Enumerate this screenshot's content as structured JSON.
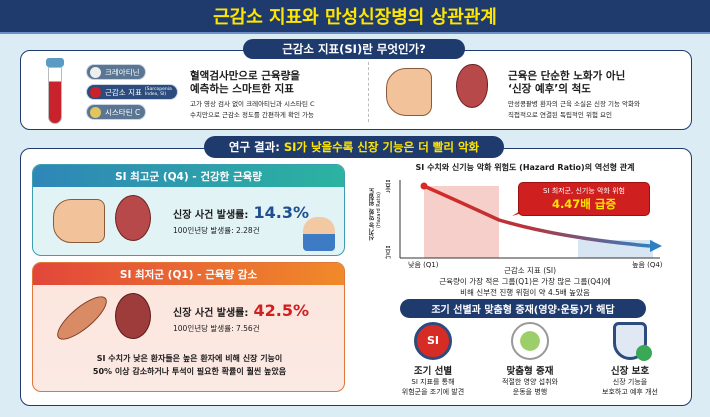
{
  "title": "근감소 지표와 만성신장병의 상관관계",
  "section1": {
    "header": "근감소 지표(SI)란 무엇인가?",
    "tags": [
      {
        "label": "크레아티닌",
        "icon": "flask-icon"
      },
      {
        "label": "근감소 지표",
        "sub": "(Sarcopenia Index, SI)",
        "icon": "blood-drop-icon"
      },
      {
        "label": "시스타틴 C",
        "icon": "molecule-icon"
      }
    ],
    "left_heading": [
      "혈액검사만으로 근육량을",
      "예측하는 스마트한 지표"
    ],
    "left_text": [
      "고가 영상 검사 없이 크레아티닌과 시스타틴 C",
      "수치만으로 근감소 정도를 간편하게 확인 가능"
    ],
    "right_heading": [
      "근육은 단순한 노화가 아닌",
      "‘신장 예후’의 척도"
    ],
    "right_text": [
      "만성콩팥병 환자의 근육 소실은 신장 기능 악화와",
      "직접적으로 연결된 독립적인 위험 요인"
    ]
  },
  "section2": {
    "header_prefix": "연구 결과:",
    "header_highlight": "SI가 낮을수록 신장 기능은 더 빨리 악화",
    "q4": {
      "title": "SI 최고군 (Q4) - 건강한 근육량",
      "label": "신장 사건 발생률:",
      "value": "14.3%",
      "sub": "100인년당 발생률: 2.28건",
      "color": "#1f4f8f"
    },
    "q1": {
      "title": "SI 최저군 (Q1) - 근육량 감소",
      "label": "신장 사건 발생률:",
      "value": "42.5%",
      "sub": "100인년당 발생률: 7.56건",
      "color": "#d01f1f"
    },
    "summary": [
      "SI 수치가 낮은 환자들은 높은 환자에 비해 신장 기능이",
      "50% 이상 감소하거나 투석이 필요한 확률이 훨씬 높았음"
    ],
    "chart": {
      "title": "SI 수치와 신기능 악화 위험도 (Hazard Ratio)의 역선형 관계",
      "ylabel": "신기능 악화 위험도",
      "ylabel_sub": "(Hazard Ratio)",
      "y_high": "높음",
      "y_low": "낮음",
      "x_low": "낮음 (Q1)",
      "x_high": "높음 (Q4)",
      "xlabel": "근감소 지표 (SI)",
      "callout_line1": "SI 최저군, 신기능 악화 위험",
      "callout_line2": "4.47배 급증",
      "caption": [
        "근육량이 가장 적은 그룹(Q1)은 가장 많은 그룹(Q4)에",
        "비해 신부전 진행 위험이 약 4.5배 높았음"
      ]
    },
    "solution_header": "조기 선별과 맞춤형 중재(영양·운동)가 해답",
    "solutions": [
      {
        "title": "조기 선별",
        "lines": [
          "SI 지표를 통해",
          "위험군을 조기에 발견"
        ],
        "icon": "magnifier-icon",
        "icon_text": "SI"
      },
      {
        "title": "맞춤형 중재",
        "lines": [
          "적절한 영양 섭취와",
          "운동을 병행"
        ],
        "icon": "meal-running-icon"
      },
      {
        "title": "신장 보호",
        "lines": [
          "신장 기능을",
          "보호하고 예후 개선"
        ],
        "icon": "shield-kidney-icon"
      }
    ]
  }
}
